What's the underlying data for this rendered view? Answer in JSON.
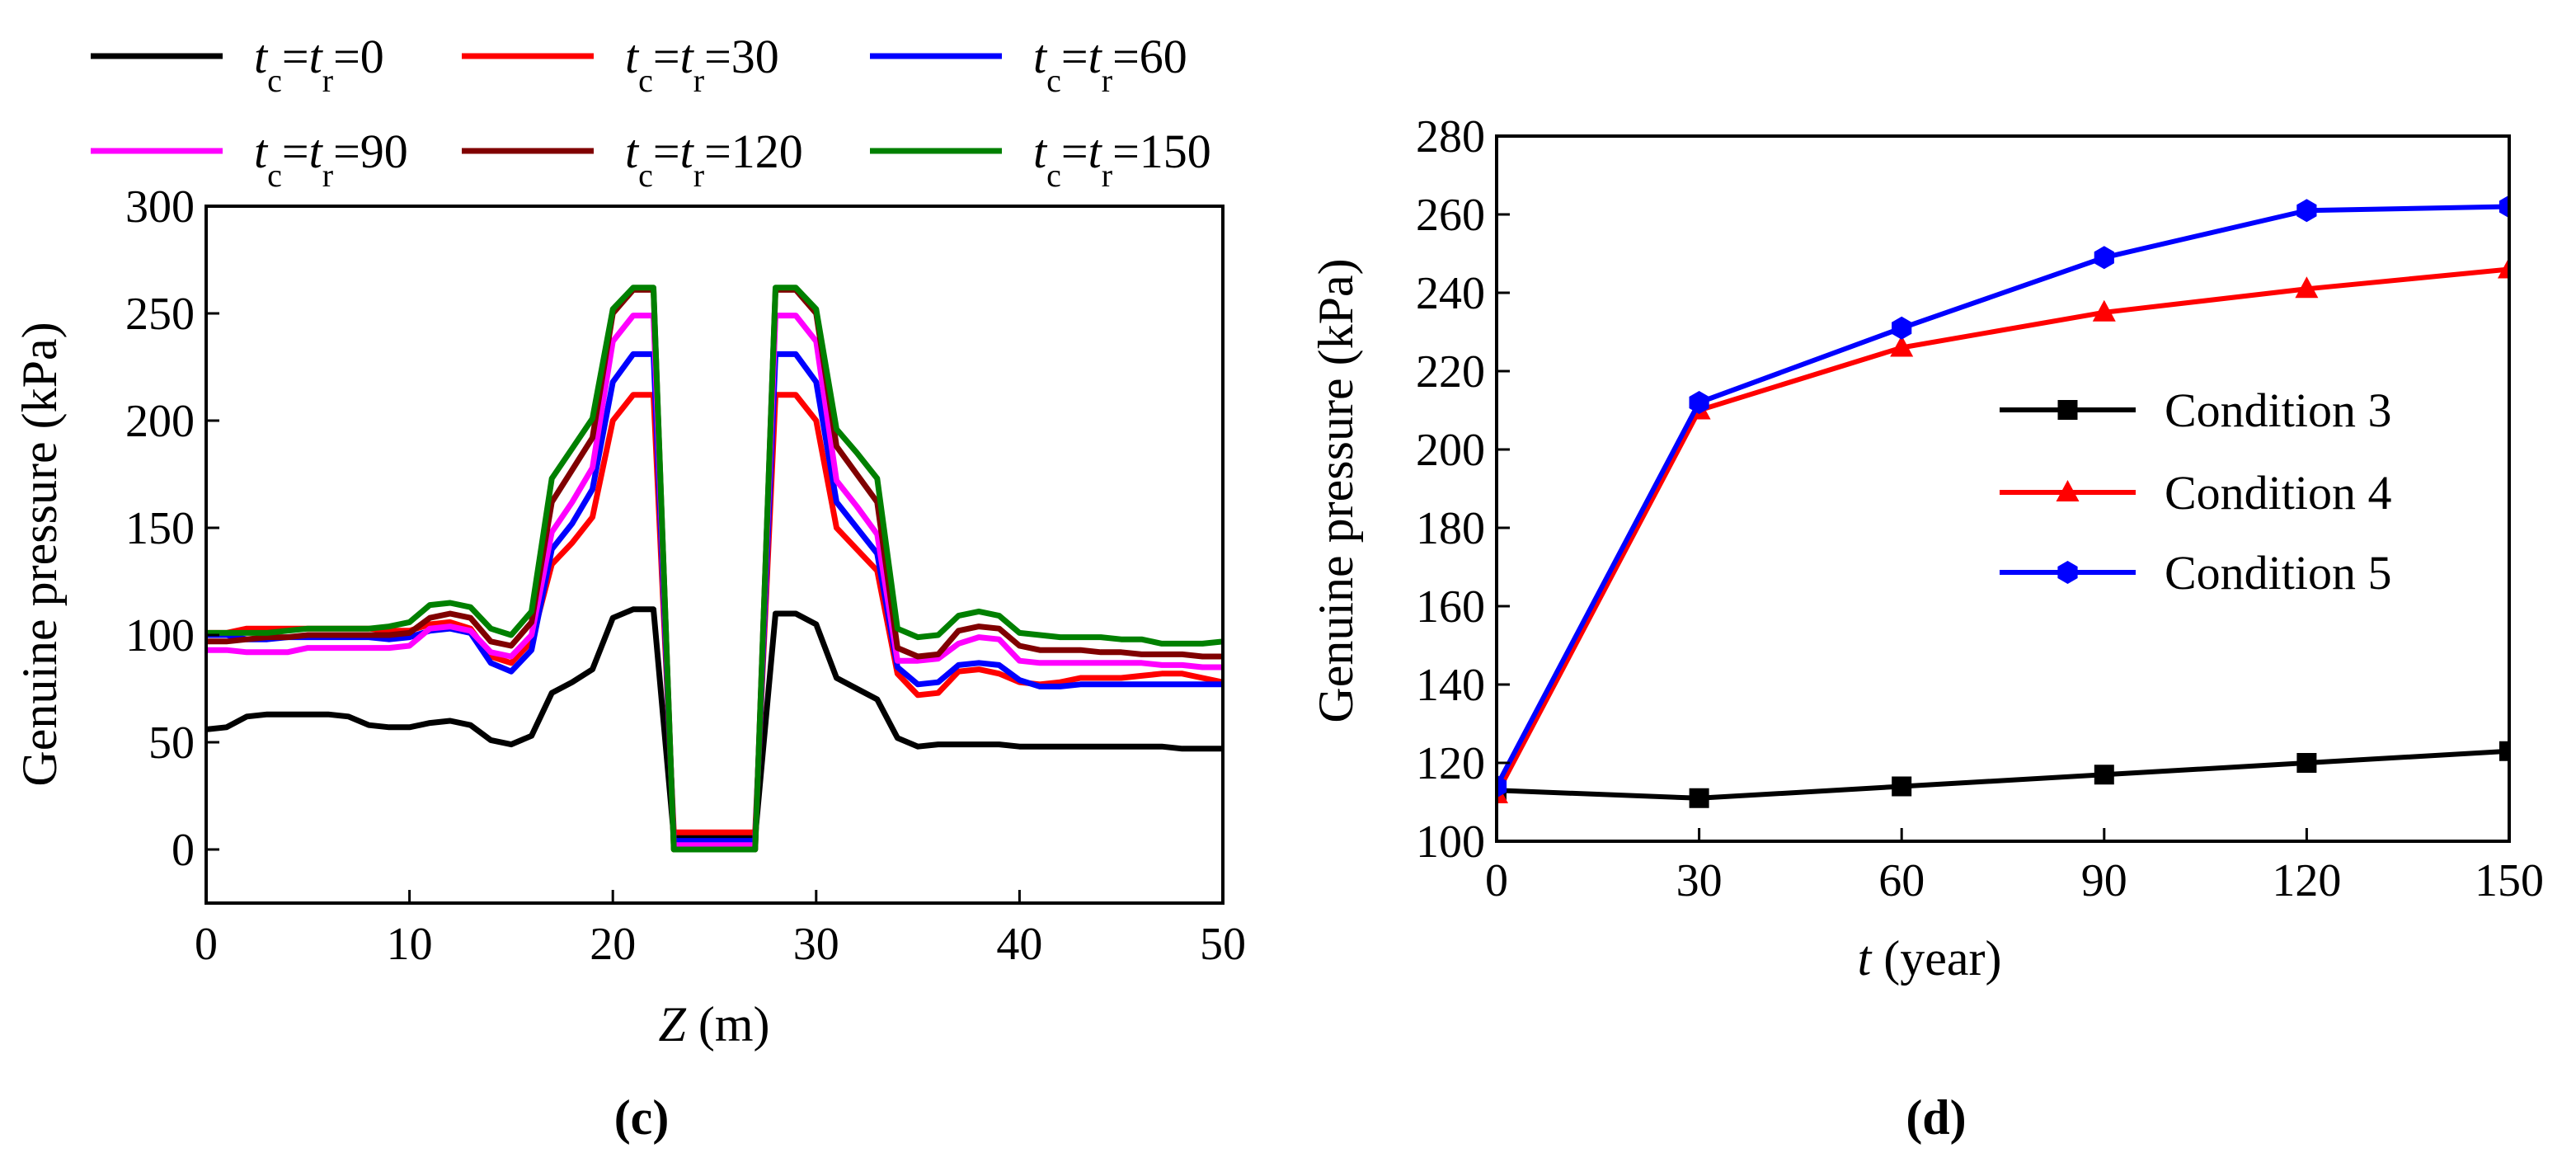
{
  "chart_data": [
    {
      "panel": "c",
      "caption": "(c)",
      "type": "line",
      "xlabel": "Z (m)",
      "ylabel": "Genuine pressure (kPa)",
      "xlim": [
        0,
        50
      ],
      "ylim": [
        -25,
        300
      ],
      "xticks": [
        "0",
        "10",
        "20",
        "30",
        "40",
        "50"
      ],
      "yticks": [
        "0",
        "50",
        "100",
        "150",
        "200",
        "250",
        "300"
      ],
      "x": [
        0,
        1,
        2,
        3,
        4,
        5,
        6,
        7,
        8,
        9,
        10,
        11,
        12,
        13,
        14,
        15,
        16,
        17,
        18,
        19,
        20,
        21,
        22,
        23,
        27,
        28,
        29,
        30,
        31,
        32,
        33,
        34,
        35,
        36,
        37,
        38,
        39,
        40,
        41,
        42,
        43,
        44,
        45,
        46,
        47,
        48,
        49,
        50
      ],
      "series": [
        {
          "name": "tc=tr=0",
          "color": "#000000",
          "legend_main": "t",
          "legend_sub1": "c",
          "legend_mid": "=t",
          "legend_sub2": "r",
          "legend_val": "=0",
          "values": [
            56,
            57,
            62,
            63,
            63,
            63,
            63,
            62,
            58,
            57,
            57,
            59,
            60,
            58,
            51,
            49,
            53,
            73,
            78,
            84,
            108,
            112,
            112,
            6,
            6,
            110,
            110,
            105,
            80,
            75,
            70,
            52,
            48,
            49,
            49,
            49,
            49,
            48,
            48,
            48,
            48,
            48,
            48,
            48,
            48,
            47,
            47,
            47
          ]
        },
        {
          "name": "tc=tr=30",
          "color": "#ff0000",
          "legend_main": "t",
          "legend_sub1": "c",
          "legend_mid": "=t",
          "legend_sub2": "r",
          "legend_val": "=30",
          "values": [
            101,
            101,
            103,
            103,
            103,
            103,
            103,
            103,
            103,
            102,
            102,
            105,
            106,
            103,
            90,
            87,
            97,
            133,
            143,
            155,
            200,
            212,
            212,
            8,
            8,
            212,
            212,
            200,
            150,
            140,
            130,
            82,
            72,
            73,
            83,
            84,
            82,
            78,
            77,
            78,
            80,
            80,
            80,
            81,
            82,
            82,
            80,
            78
          ]
        },
        {
          "name": "tc=tr=60",
          "color": "#0000ff",
          "legend_main": "t",
          "legend_sub1": "c",
          "legend_mid": "=t",
          "legend_sub2": "r",
          "legend_val": "=60",
          "values": [
            100,
            100,
            98,
            98,
            99,
            99,
            99,
            99,
            99,
            98,
            99,
            102,
            103,
            101,
            87,
            83,
            93,
            140,
            152,
            168,
            218,
            231,
            231,
            4,
            4,
            231,
            231,
            218,
            162,
            150,
            138,
            85,
            77,
            78,
            86,
            87,
            86,
            79,
            76,
            76,
            77,
            77,
            77,
            77,
            77,
            77,
            77,
            77
          ]
        },
        {
          "name": "tc=tr=90",
          "color": "#ff00ff",
          "legend_main": "t",
          "legend_sub1": "c",
          "legend_mid": "=t",
          "legend_sub2": "r",
          "legend_val": "=90",
          "values": [
            93,
            93,
            92,
            92,
            92,
            94,
            94,
            94,
            94,
            94,
            95,
            103,
            104,
            102,
            92,
            90,
            100,
            148,
            162,
            178,
            237,
            249,
            249,
            2,
            2,
            249,
            249,
            237,
            172,
            160,
            147,
            88,
            88,
            89,
            96,
            99,
            98,
            88,
            87,
            87,
            87,
            87,
            87,
            87,
            86,
            86,
            85,
            85
          ]
        },
        {
          "name": "tc=tr=120",
          "color": "#800000",
          "legend_main": "t",
          "legend_sub1": "c",
          "legend_mid": "=t",
          "legend_sub2": "r",
          "legend_val": "=120",
          "values": [
            97,
            97,
            98,
            99,
            99,
            100,
            100,
            100,
            100,
            100,
            101,
            108,
            110,
            108,
            97,
            95,
            106,
            162,
            177,
            192,
            250,
            261,
            261,
            0,
            0,
            261,
            261,
            250,
            188,
            175,
            162,
            94,
            90,
            91,
            102,
            104,
            103,
            95,
            93,
            93,
            93,
            92,
            92,
            91,
            91,
            91,
            90,
            90
          ]
        },
        {
          "name": "tc=tr=150",
          "color": "#008000",
          "legend_main": "t",
          "legend_sub1": "c",
          "legend_mid": "=t",
          "legend_sub2": "r",
          "legend_val": "=150",
          "values": [
            101,
            101,
            101,
            101,
            102,
            103,
            103,
            103,
            103,
            104,
            106,
            114,
            115,
            113,
            103,
            100,
            111,
            173,
            187,
            201,
            252,
            262,
            262,
            0,
            0,
            262,
            262,
            252,
            196,
            185,
            173,
            103,
            99,
            100,
            109,
            111,
            109,
            101,
            100,
            99,
            99,
            99,
            98,
            98,
            96,
            96,
            96,
            97
          ]
        }
      ]
    },
    {
      "panel": "d",
      "caption": "(d)",
      "type": "line",
      "xlabel": "t (year)",
      "ylabel": "Genuine pressure (kPa)",
      "xlim": [
        0,
        150
      ],
      "ylim": [
        100,
        280
      ],
      "xticks": [
        "0",
        "30",
        "60",
        "90",
        "120",
        "150"
      ],
      "yticks": [
        "100",
        "120",
        "140",
        "160",
        "180",
        "200",
        "220",
        "240",
        "260",
        "280"
      ],
      "x": [
        0,
        30,
        60,
        90,
        120,
        150
      ],
      "series": [
        {
          "name": "Condition 3",
          "color": "#000000",
          "marker": "square",
          "values": [
            113,
            111,
            114,
            117,
            120,
            123
          ]
        },
        {
          "name": "Condition 4",
          "color": "#ff0000",
          "marker": "triangle",
          "values": [
            112,
            210,
            226,
            235,
            241,
            246
          ]
        },
        {
          "name": "Condition 5",
          "color": "#0000ff",
          "marker": "hexagon",
          "values": [
            114,
            212,
            231,
            249,
            261,
            262
          ]
        }
      ]
    }
  ]
}
